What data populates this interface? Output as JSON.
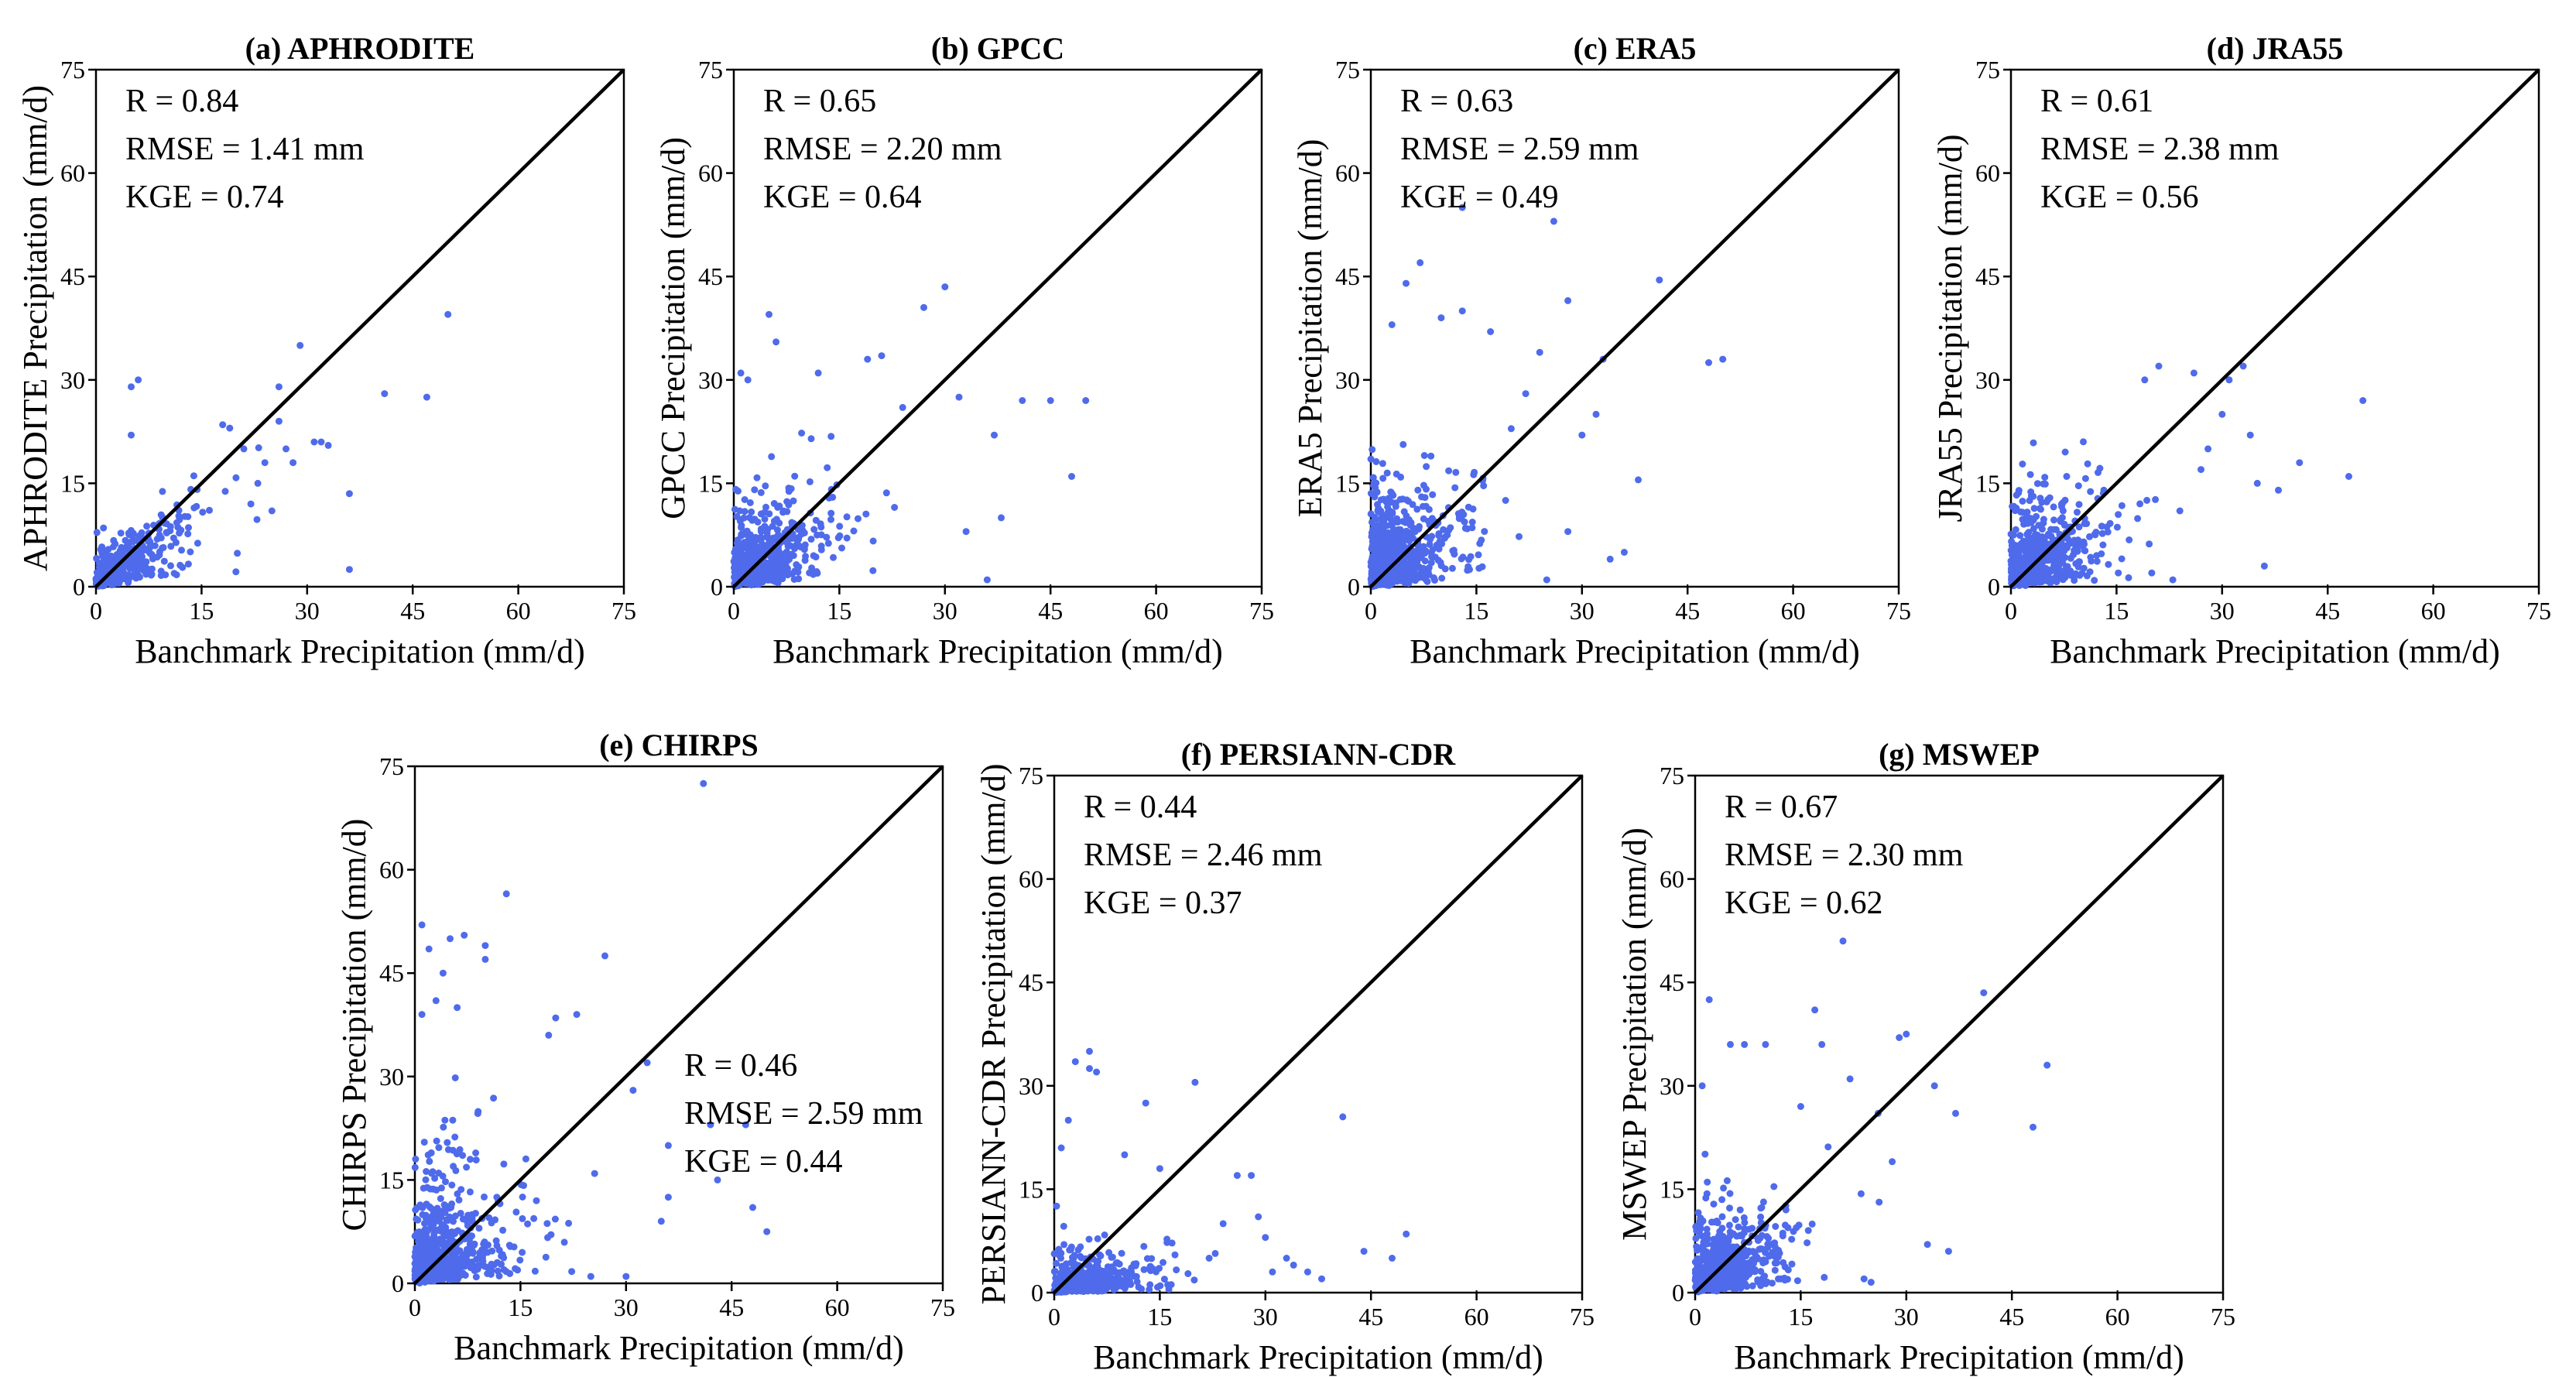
{
  "figure": {
    "point_color": "#4F6BEB",
    "line_color": "#000000"
  },
  "chart_data": [
    {
      "type": "scatter",
      "title": "(a) APHRODITE",
      "xlabel": "Banchmark Precipitation (mm/d)",
      "ylabel": "APHRODITE Precipitation (mm/d)",
      "xlim": [
        0,
        75
      ],
      "ylim": [
        0,
        75
      ],
      "xticks": [
        "0",
        "15",
        "30",
        "45",
        "60",
        "75"
      ],
      "yticks": [
        "0",
        "15",
        "30",
        "45",
        "60",
        "75"
      ],
      "reference_line": "1:1",
      "stats": [
        "R = 0.84",
        "RMSE = 1.41 mm",
        "KGE = 0.74"
      ],
      "stats_anchor": "top-left",
      "cloud": {
        "n": 360,
        "xscale": 7,
        "yscale": 5.5,
        "corr": 0.6,
        "spread": 0.55,
        "slope": 1.0,
        "seed": 11,
        "maxy": 25
      },
      "points": [
        [
          36,
          2.5
        ],
        [
          36,
          13.5
        ],
        [
          26,
          29
        ],
        [
          26,
          24
        ],
        [
          27,
          20
        ],
        [
          29,
          35
        ],
        [
          31,
          21
        ],
        [
          32,
          21
        ],
        [
          33,
          20.5
        ],
        [
          41,
          28
        ],
        [
          47,
          27.5
        ],
        [
          50,
          39.5
        ],
        [
          5,
          29
        ],
        [
          6,
          30
        ],
        [
          5,
          22
        ],
        [
          18,
          23.5
        ],
        [
          19,
          23
        ],
        [
          23,
          15
        ],
        [
          24,
          18
        ],
        [
          21,
          20
        ],
        [
          28,
          18
        ],
        [
          22,
          12
        ],
        [
          25,
          11
        ]
      ]
    },
    {
      "type": "scatter",
      "title": "(b) GPCC",
      "xlabel": "Banchmark Precipitation (mm/d)",
      "ylabel": "GPCC Precipitation (mm/d)",
      "xlim": [
        0,
        75
      ],
      "ylim": [
        0,
        75
      ],
      "xticks": [
        "0",
        "15",
        "30",
        "45",
        "60",
        "75"
      ],
      "yticks": [
        "0",
        "15",
        "30",
        "45",
        "60",
        "75"
      ],
      "reference_line": "1:1",
      "stats": [
        "R = 0.65",
        "RMSE = 2.20 mm",
        "KGE = 0.64"
      ],
      "stats_anchor": "top-left",
      "cloud": {
        "n": 520,
        "xscale": 7,
        "yscale": 7,
        "corr": 0.45,
        "spread": 0.75,
        "slope": 1.0,
        "seed": 23,
        "maxy": 33
      },
      "points": [
        [
          30,
          43.5
        ],
        [
          27,
          40.5
        ],
        [
          21,
          33.5
        ],
        [
          24,
          26
        ],
        [
          6,
          35.5
        ],
        [
          5,
          39.5
        ],
        [
          2,
          30
        ],
        [
          32,
          27.5
        ],
        [
          37,
          22
        ],
        [
          33,
          8
        ],
        [
          41,
          27
        ],
        [
          45,
          27
        ],
        [
          48,
          16
        ],
        [
          36,
          1
        ],
        [
          50,
          27
        ],
        [
          38,
          10
        ],
        [
          1,
          31
        ],
        [
          12,
          31
        ],
        [
          19,
          33
        ]
      ]
    },
    {
      "type": "scatter",
      "title": "(c) ERA5",
      "xlabel": "Banchmark Precipitation (mm/d)",
      "ylabel": "ERA5 Precipitation (mm/d)",
      "xlim": [
        0,
        75
      ],
      "ylim": [
        0,
        75
      ],
      "xticks": [
        "0",
        "15",
        "30",
        "45",
        "60",
        "75"
      ],
      "yticks": [
        "0",
        "15",
        "30",
        "45",
        "60",
        "75"
      ],
      "reference_line": "1:1",
      "stats": [
        "R = 0.63",
        "RMSE = 2.59 mm",
        "KGE = 0.49"
      ],
      "stats_anchor": "top-left",
      "cloud": {
        "n": 600,
        "xscale": 6.5,
        "yscale": 8,
        "corr": 0.42,
        "spread": 0.85,
        "slope": 1.0,
        "seed": 37,
        "maxy": 36
      },
      "points": [
        [
          13,
          55
        ],
        [
          26,
          53
        ],
        [
          7,
          47
        ],
        [
          10,
          39
        ],
        [
          13,
          40
        ],
        [
          17,
          37
        ],
        [
          24,
          34
        ],
        [
          28,
          41.5
        ],
        [
          41,
          44.5
        ],
        [
          36,
          5
        ],
        [
          38,
          15.5
        ],
        [
          48,
          32.5
        ],
        [
          50,
          33
        ],
        [
          32,
          25
        ],
        [
          30,
          22
        ],
        [
          33,
          33
        ],
        [
          22,
          28
        ],
        [
          34,
          4
        ],
        [
          25,
          1
        ],
        [
          28,
          8
        ],
        [
          3,
          38
        ],
        [
          5,
          44
        ]
      ]
    },
    {
      "type": "scatter",
      "title": "(d) JRA55",
      "xlabel": "Banchmark Precipitation (mm/d)",
      "ylabel": "JRA55 Precipitation (mm/d)",
      "xlim": [
        0,
        75
      ],
      "ylim": [
        0,
        75
      ],
      "xticks": [
        "0",
        "15",
        "30",
        "45",
        "60",
        "75"
      ],
      "yticks": [
        "0",
        "15",
        "30",
        "45",
        "60",
        "75"
      ],
      "reference_line": "1:1",
      "stats": [
        "R = 0.61",
        "RMSE = 2.38 mm",
        "KGE = 0.56"
      ],
      "stats_anchor": "top-left",
      "cloud": {
        "n": 560,
        "xscale": 6.5,
        "yscale": 7,
        "corr": 0.4,
        "spread": 0.85,
        "slope": 1.0,
        "seed": 41,
        "maxy": 32
      },
      "points": [
        [
          50,
          27
        ],
        [
          41,
          18
        ],
        [
          38,
          14
        ],
        [
          36,
          3
        ],
        [
          35,
          15
        ],
        [
          34,
          22
        ],
        [
          31,
          30
        ],
        [
          33,
          32
        ],
        [
          30,
          25
        ],
        [
          26,
          31
        ],
        [
          21,
          32
        ],
        [
          19,
          30
        ],
        [
          27,
          17
        ],
        [
          24,
          11
        ],
        [
          48,
          16
        ],
        [
          28,
          20
        ],
        [
          23,
          1
        ],
        [
          20,
          2
        ]
      ]
    },
    {
      "type": "scatter",
      "title": "(e) CHIRPS",
      "xlabel": "Banchmark Precipitation (mm/d)",
      "ylabel": "CHIRPS Precipitation (mm/d)",
      "xlim": [
        0,
        75
      ],
      "ylim": [
        0,
        75
      ],
      "xticks": [
        "0",
        "15",
        "30",
        "45",
        "60",
        "75"
      ],
      "yticks": [
        "0",
        "15",
        "30",
        "45",
        "60",
        "75"
      ],
      "reference_line": "1:1",
      "stats": [
        "R = 0.46",
        "RMSE = 2.59 mm",
        "KGE = 0.44"
      ],
      "stats_anchor": "center-right",
      "cloud": {
        "n": 620,
        "xscale": 6.5,
        "yscale": 8,
        "corr": 0.3,
        "spread": 1.0,
        "slope": 0.9,
        "seed": 53,
        "maxy": 40
      },
      "points": [
        [
          41,
          72.5
        ],
        [
          13,
          56.5
        ],
        [
          5,
          50
        ],
        [
          7,
          50.5
        ],
        [
          2,
          48.5
        ],
        [
          10,
          49
        ],
        [
          10,
          47
        ],
        [
          27,
          47.5
        ],
        [
          1,
          52
        ],
        [
          4,
          45
        ],
        [
          3,
          41
        ],
        [
          1,
          39
        ],
        [
          20,
          38.5
        ],
        [
          23,
          39
        ],
        [
          19,
          36
        ],
        [
          33,
          32
        ],
        [
          31,
          28
        ],
        [
          36,
          20
        ],
        [
          36,
          12.5
        ],
        [
          42,
          23
        ],
        [
          48,
          11
        ],
        [
          50,
          7.5
        ],
        [
          25,
          1
        ],
        [
          30,
          1
        ],
        [
          35,
          9
        ],
        [
          47,
          23
        ],
        [
          43,
          15
        ],
        [
          6,
          40
        ]
      ]
    },
    {
      "type": "scatter",
      "title": "(f) PERSIANN-CDR",
      "xlabel": "Banchmark Precipitation (mm/d)",
      "ylabel": "PERSIANN-CDR Precipitation (mm/d)",
      "xlim": [
        0,
        75
      ],
      "ylim": [
        0,
        75
      ],
      "xticks": [
        "0",
        "15",
        "30",
        "45",
        "60",
        "75"
      ],
      "yticks": [
        "0",
        "15",
        "30",
        "45",
        "60",
        "75"
      ],
      "reference_line": "1:1",
      "stats": [
        "R = 0.44",
        "RMSE = 2.46 mm",
        "KGE = 0.37"
      ],
      "stats_anchor": "top-left",
      "cloud": {
        "n": 520,
        "xscale": 7,
        "yscale": 3.5,
        "corr": 0.3,
        "spread": 0.7,
        "slope": 0.55,
        "seed": 67,
        "maxy": 20
      },
      "points": [
        [
          5,
          35
        ],
        [
          5,
          32.5
        ],
        [
          3,
          33.5
        ],
        [
          6,
          32
        ],
        [
          20,
          30.5
        ],
        [
          13,
          27.5
        ],
        [
          41,
          25.5
        ],
        [
          50,
          8.5
        ],
        [
          48,
          5
        ],
        [
          38,
          2
        ],
        [
          33,
          5
        ],
        [
          30,
          8
        ],
        [
          26,
          17
        ],
        [
          28,
          17
        ],
        [
          34,
          4
        ],
        [
          36,
          3
        ],
        [
          22,
          5
        ],
        [
          24,
          10
        ],
        [
          1,
          21
        ],
        [
          2,
          25
        ],
        [
          10,
          20
        ],
        [
          15,
          18
        ],
        [
          29,
          11
        ],
        [
          31,
          3
        ],
        [
          44,
          6
        ]
      ]
    },
    {
      "type": "scatter",
      "title": "(g) MSWEP",
      "xlabel": "Banchmark Precipitation (mm/d)",
      "ylabel": "MSWEP Precipitation (mm/d)",
      "xlim": [
        0,
        75
      ],
      "ylim": [
        0,
        75
      ],
      "xticks": [
        "0",
        "15",
        "30",
        "45",
        "60",
        "75"
      ],
      "yticks": [
        "0",
        "15",
        "30",
        "45",
        "60",
        "75"
      ],
      "reference_line": "1:1",
      "stats": [
        "R = 0.67",
        "RMSE = 2.30 mm",
        "KGE = 0.62"
      ],
      "stats_anchor": "top-left",
      "cloud": {
        "n": 560,
        "xscale": 6.5,
        "yscale": 7.5,
        "corr": 0.45,
        "spread": 0.75,
        "slope": 1.0,
        "seed": 79,
        "maxy": 36
      },
      "points": [
        [
          21,
          51
        ],
        [
          41,
          43.5
        ],
        [
          50,
          33
        ],
        [
          48,
          24
        ],
        [
          37,
          26
        ],
        [
          34,
          30
        ],
        [
          30,
          37.5
        ],
        [
          29,
          37
        ],
        [
          17,
          41
        ],
        [
          2,
          42.5
        ],
        [
          28,
          19
        ],
        [
          26,
          26
        ],
        [
          33,
          7
        ],
        [
          36,
          6
        ],
        [
          24,
          2
        ],
        [
          25,
          1.5
        ],
        [
          22,
          31
        ],
        [
          18,
          36
        ],
        [
          10,
          36
        ],
        [
          7,
          36
        ],
        [
          5,
          36
        ],
        [
          1,
          30
        ],
        [
          15,
          27
        ]
      ]
    }
  ]
}
